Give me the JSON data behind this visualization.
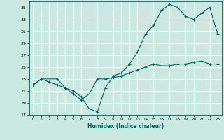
{
  "xlabel": "Humidex (Indice chaleur)",
  "bg_color": "#c8e8e0",
  "line_color": "#006060",
  "grid_color": "#ffffff",
  "xlim": [
    -0.5,
    23.5
  ],
  "ylim": [
    17,
    36
  ],
  "yticks": [
    17,
    19,
    21,
    23,
    25,
    27,
    29,
    31,
    33,
    35
  ],
  "xticks": [
    0,
    1,
    2,
    3,
    4,
    5,
    6,
    7,
    8,
    9,
    10,
    11,
    12,
    13,
    14,
    15,
    16,
    17,
    18,
    19,
    20,
    21,
    22,
    23
  ],
  "line1_x": [
    0,
    1,
    2,
    3,
    4,
    5,
    6,
    7,
    8,
    9,
    10,
    11,
    12,
    13,
    14,
    15,
    16,
    17,
    18,
    19,
    20,
    21,
    22,
    23
  ],
  "line1_y": [
    22.0,
    23.0,
    22.5,
    22.0,
    21.5,
    20.5,
    19.5,
    20.5,
    23.0,
    23.0,
    23.2,
    23.5,
    24.0,
    24.5,
    25.0,
    25.5,
    25.2,
    25.2,
    25.5,
    25.5,
    25.8,
    26.0,
    25.5,
    25.5
  ],
  "line2_x": [
    0,
    1,
    3,
    4,
    5,
    6,
    7,
    8,
    9,
    10,
    11,
    12,
    13,
    14,
    15,
    16,
    17,
    18,
    19,
    20,
    21,
    22,
    23
  ],
  "line2_y": [
    22.0,
    23.0,
    23.0,
    21.5,
    21.0,
    20.0,
    18.0,
    17.5,
    21.5,
    23.5,
    24.0,
    25.5,
    27.5,
    30.5,
    32.0,
    34.5,
    35.5,
    35.0,
    33.5,
    33.0,
    34.0,
    35.0,
    30.5
  ]
}
